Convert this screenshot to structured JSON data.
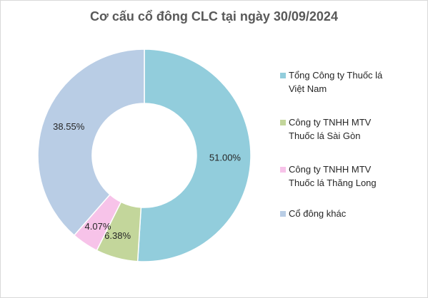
{
  "chart_data": {
    "type": "pie",
    "variant": "donut",
    "title": "Cơ cấu cổ đông CLC tại ngày 30/09/2024",
    "legend_position": "right",
    "slices": [
      {
        "name": "Tổng Công ty Thuốc lá\nViệt Nam",
        "value": 51.0,
        "label": "51.00%",
        "color": "#92cddc"
      },
      {
        "name": "Công ty TNHH MTV\nThuốc lá Sài Gòn",
        "value": 6.38,
        "label": "6.38%",
        "color": "#c3d69b"
      },
      {
        "name": "Công ty TNHH  MTV\nThuốc lá Thăng Long",
        "value": 4.07,
        "label": "4.07%",
        "color": "#f7c3e9"
      },
      {
        "name": "Cổ đông khác",
        "value": 38.55,
        "label": "38.55%",
        "color": "#b9cde5"
      }
    ]
  }
}
